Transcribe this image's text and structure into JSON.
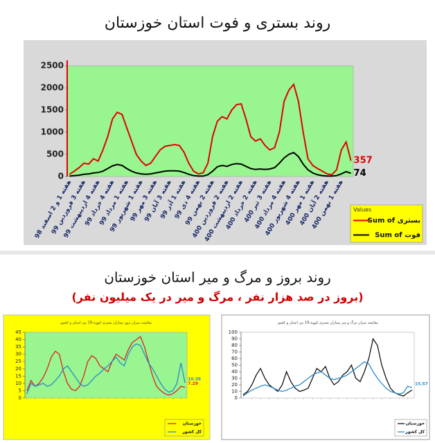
{
  "header": {
    "title": "روند بستری و فوت استان خوزستان",
    "title2": "روند بروز و مرگ و میر استان خوزستان",
    "subtitle2": "(بروز در صد هزار نفر ، مرگ و میر در یک میلیون نفر)"
  },
  "chart_data": [
    {
      "type": "line",
      "legend_title": "Values",
      "categories": [
        "هفته 1 و 2 اسفند 98",
        null,
        null,
        "هفته 3 فروردین 99",
        null,
        null,
        "هفته 4 اردیبهشت 99",
        null,
        null,
        "هفته 4 خرداد 99",
        null,
        null,
        "هفته 1 مرداد 99",
        null,
        null,
        "هفته 1 شهریور 99",
        null,
        null,
        "هفته 3 مهر 99",
        null,
        null,
        "هفته 3 آبان 99",
        null,
        null,
        "هفته 1 آذر 99",
        null,
        null,
        "هفته 4 دی 99",
        null,
        null,
        "هفته 2 بهمن 99",
        null,
        null,
        "هفته 2 فروردین 400",
        null,
        null,
        "هفته 2 اردیبهشت 400",
        null,
        null,
        "هفته 2 خرداد 400",
        null,
        null,
        "هفته 3 تیر 400",
        null,
        null,
        "هفته 4 مرداد 400",
        null,
        null,
        "هفته 4 شهریور 400",
        null,
        null,
        "هفته 1 مهر 400",
        null,
        null,
        "هفته 2 آبان 400",
        null,
        null,
        "هفته 1 بهمن 400",
        null,
        null
      ],
      "series": [
        {
          "name": "Sum of بستری",
          "color": "#e00000",
          "end_label": true,
          "values": [
            50,
            120,
            200,
            300,
            280,
            400,
            350,
            600,
            900,
            1300,
            1450,
            1400,
            1100,
            800,
            500,
            350,
            250,
            300,
            450,
            600,
            680,
            700,
            720,
            700,
            550,
            300,
            120,
            60,
            80,
            300,
            900,
            1250,
            1350,
            1300,
            1500,
            1620,
            1640,
            1300,
            900,
            800,
            850,
            700,
            600,
            650,
            1000,
            1700,
            1950,
            2080,
            1700,
            1000,
            400,
            250,
            180,
            120,
            60,
            40,
            150,
            600,
            780,
            357
          ]
        },
        {
          "name": "Sum of فوت",
          "color": "#000000",
          "end_label": true,
          "values": [
            10,
            20,
            30,
            50,
            60,
            80,
            90,
            120,
            180,
            240,
            270,
            250,
            180,
            120,
            80,
            60,
            50,
            60,
            80,
            100,
            120,
            130,
            130,
            120,
            90,
            50,
            20,
            10,
            10,
            40,
            120,
            220,
            250,
            230,
            270,
            290,
            280,
            230,
            180,
            160,
            170,
            160,
            170,
            200,
            300,
            420,
            500,
            540,
            450,
            280,
            150,
            80,
            40,
            20,
            10,
            10,
            20,
            60,
            110,
            74
          ]
        }
      ],
      "ylim": [
        0,
        2500
      ],
      "yticks": [
        0,
        500,
        1000,
        1500,
        2000,
        2500
      ],
      "background": "#99f58f"
    },
    {
      "type": "line",
      "title": "مقایسه میزان بروز بیماران بستری کووید-19 بین استان و کشور",
      "series": [
        {
          "name": "خوزستان",
          "color": "#e02020",
          "end_label": true,
          "values": [
            5,
            12,
            8,
            10,
            14,
            20,
            28,
            32,
            30,
            18,
            10,
            6,
            5,
            8,
            15,
            25,
            29,
            27,
            22,
            20,
            18,
            25,
            30,
            28,
            26,
            33,
            38,
            40,
            42,
            35,
            25,
            15,
            8,
            5,
            3,
            2,
            3,
            5,
            8,
            7.29
          ]
        },
        {
          "name": "کل کشور",
          "color": "#2a8ac8",
          "end_label": true,
          "values": [
            3,
            10,
            8,
            9,
            10,
            8,
            9,
            12,
            15,
            20,
            22,
            18,
            14,
            10,
            8,
            9,
            12,
            15,
            17,
            20,
            22,
            25,
            28,
            24,
            22,
            30,
            35,
            37,
            36,
            30,
            24,
            20,
            15,
            10,
            6,
            4,
            5,
            10,
            24,
            10.36
          ]
        }
      ],
      "ylim": [
        0,
        45
      ],
      "yticks": [
        0,
        5,
        10,
        15,
        20,
        25,
        30,
        35,
        40,
        45
      ],
      "background": "#99f58f"
    },
    {
      "type": "line",
      "title": "مقایسه میزان مرگ و میر بیماران بستری کووید-19 بین استان و کشور",
      "series": [
        {
          "name": "خوزستان",
          "color": "#111111",
          "end_label": false,
          "values": [
            5,
            10,
            20,
            35,
            45,
            30,
            20,
            15,
            10,
            20,
            40,
            25,
            15,
            10,
            12,
            15,
            30,
            45,
            40,
            48,
            30,
            20,
            25,
            35,
            40,
            50,
            30,
            25,
            40,
            60,
            90,
            80,
            50,
            30,
            15,
            8,
            5,
            3,
            8,
            12
          ]
        },
        {
          "name": "کل کشور",
          "color": "#2a8ac8",
          "end_label": true,
          "values": [
            3,
            8,
            12,
            15,
            18,
            20,
            18,
            15,
            12,
            10,
            12,
            15,
            18,
            20,
            25,
            30,
            35,
            38,
            40,
            35,
            30,
            28,
            30,
            32,
            35,
            40,
            45,
            50,
            55,
            52,
            40,
            30,
            22,
            15,
            10,
            8,
            6,
            8,
            18,
            15.57
          ]
        }
      ],
      "ylim": [
        0,
        100
      ],
      "yticks": [
        0,
        10,
        20,
        30,
        40,
        50,
        60,
        70,
        80,
        90,
        100
      ],
      "background": "#ffffff"
    }
  ]
}
